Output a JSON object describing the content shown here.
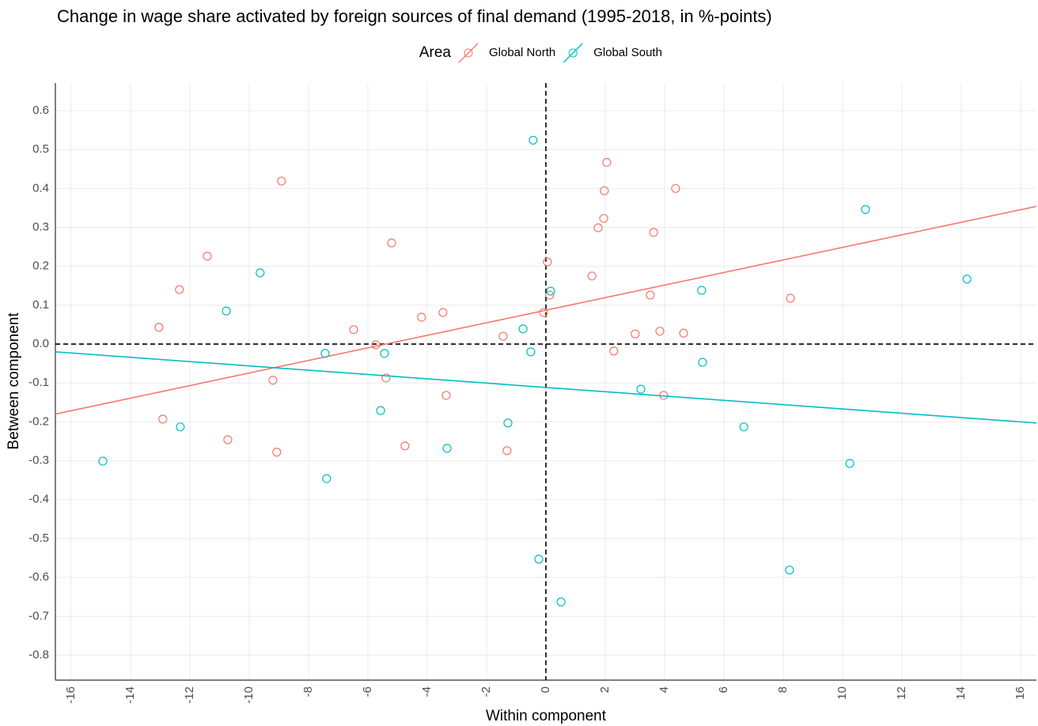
{
  "chart_data": {
    "type": "scatter",
    "title": "Change in wage share activated by foreign sources of final demand (1995-2018, in %-points)",
    "x_label": "Within component",
    "y_label": "Between component",
    "legend_title": "Area",
    "xlim": [
      -16.53,
      16.53
    ],
    "ylim": [
      -0.864,
      0.671
    ],
    "xticks": [
      -16,
      -14,
      -12,
      -10,
      -8,
      -6,
      -4,
      -2,
      0,
      2,
      4,
      6,
      8,
      10,
      12,
      14,
      16
    ],
    "yticks": [
      -0.8,
      -0.7,
      -0.6,
      -0.5,
      -0.4,
      -0.3,
      -0.2,
      -0.1,
      {
        "value": 0,
        "label": "0.0"
      },
      0.1,
      0.2,
      0.3,
      0.4,
      0.5,
      0.6
    ],
    "grid": true,
    "reference_lines": {
      "x": 0,
      "y": 0
    },
    "series": [
      {
        "name": "Global North",
        "color": "#f8766d",
        "x": [
          -13.04,
          -12.91,
          -12.35,
          -11.41,
          -10.72,
          -9.07,
          -9.2,
          -8.91,
          -6.48,
          -5.73,
          -5.39,
          -5.2,
          -4.75,
          -4.19,
          -3.47,
          -3.36,
          -1.44,
          -1.31,
          -0.08,
          0.05,
          0.13,
          1.55,
          1.76,
          1.95,
          1.97,
          2.05,
          2.29,
          3.01,
          3.52,
          3.63,
          3.84,
          3.97,
          4.37,
          4.64,
          8.24
        ],
        "values": [
          0.043,
          -0.193,
          0.14,
          0.226,
          -0.246,
          -0.278,
          -0.093,
          0.419,
          0.037,
          -0.002,
          -0.087,
          0.26,
          -0.262,
          0.069,
          0.081,
          -0.132,
          0.02,
          -0.274,
          0.081,
          0.211,
          0.126,
          0.175,
          0.299,
          0.323,
          0.394,
          0.467,
          -0.018,
          0.026,
          0.126,
          0.287,
          0.033,
          -0.132,
          0.4,
          0.028,
          0.118
        ],
        "fit": {
          "x": [
            -16.53,
            16.53
          ],
          "y": [
            -0.18,
            0.354
          ]
        }
      },
      {
        "name": "Global South",
        "color": "#00bfc4",
        "x": [
          -14.93,
          -12.32,
          -10.77,
          -9.63,
          -7.44,
          -7.39,
          -5.57,
          -5.44,
          -3.33,
          -1.28,
          -0.77,
          -0.51,
          -0.43,
          -0.24,
          0.16,
          0.51,
          3.2,
          5.25,
          5.28,
          6.67,
          8.21,
          10.24,
          10.77,
          14.19
        ],
        "values": [
          -0.301,
          -0.213,
          0.085,
          0.183,
          -0.024,
          -0.346,
          -0.171,
          -0.024,
          -0.268,
          -0.203,
          0.039,
          -0.02,
          0.524,
          -0.553,
          0.136,
          -0.663,
          -0.116,
          0.138,
          -0.047,
          -0.213,
          -0.581,
          -0.307,
          0.346,
          0.167
        ],
        "fit": {
          "x": [
            -16.53,
            16.53
          ],
          "y": [
            -0.02,
            -0.203
          ]
        }
      }
    ]
  }
}
